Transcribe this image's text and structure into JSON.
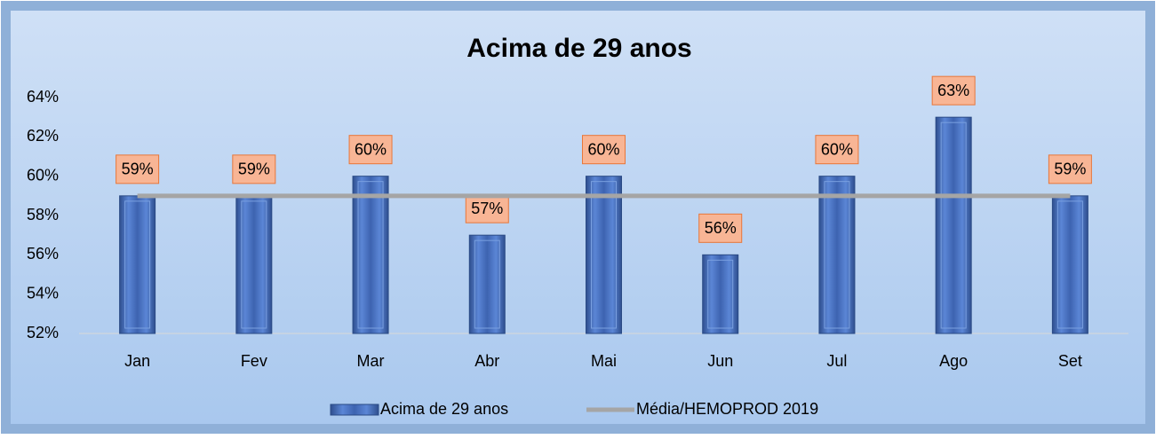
{
  "chart_data": {
    "type": "bar",
    "title": "Acima de 29 anos",
    "categories": [
      "Jan",
      "Fev",
      "Mar",
      "Abr",
      "Mai",
      "Jun",
      "Jul",
      "Ago",
      "Set"
    ],
    "series": [
      {
        "name": "Acima de 29 anos",
        "type": "bar",
        "color": "#4472c4",
        "values": [
          59,
          59,
          60,
          57,
          60,
          56,
          60,
          63,
          59
        ],
        "value_labels": [
          "59%",
          "59%",
          "60%",
          "57%",
          "60%",
          "56%",
          "60%",
          "63%",
          "59%"
        ]
      },
      {
        "name": "Média/HEMOPROD 2019",
        "type": "line",
        "color": "#a5a5a5",
        "values": [
          59,
          59,
          59,
          59,
          59,
          59,
          59,
          59,
          59
        ]
      }
    ],
    "ylim": [
      52,
      64
    ],
    "yticks": [
      {
        "value": 52,
        "label": "52%"
      },
      {
        "value": 54,
        "label": "54%"
      },
      {
        "value": 56,
        "label": "56%"
      },
      {
        "value": 58,
        "label": "58%"
      },
      {
        "value": 60,
        "label": "60%"
      },
      {
        "value": 62,
        "label": "62%"
      },
      {
        "value": 64,
        "label": "64%"
      }
    ],
    "legend": "bottom"
  }
}
